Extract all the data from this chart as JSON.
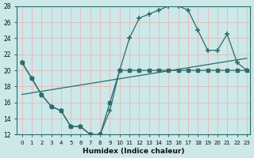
{
  "xlabel": "Humidex (Indice chaleur)",
  "bg_color": "#cce8e8",
  "line_color": "#2d6b6b",
  "grid_color": "#e8b8b8",
  "xlim": [
    -0.5,
    23.3
  ],
  "ylim": [
    12,
    28
  ],
  "xticks": [
    0,
    1,
    2,
    3,
    4,
    5,
    6,
    7,
    8,
    9,
    10,
    11,
    12,
    13,
    14,
    15,
    16,
    17,
    18,
    19,
    20,
    21,
    22,
    23
  ],
  "yticks": [
    12,
    14,
    16,
    18,
    20,
    22,
    24,
    26,
    28
  ],
  "line1_x": [
    0,
    1,
    2,
    3,
    4,
    5,
    6,
    7,
    8,
    9,
    10,
    11,
    12,
    13,
    14,
    15,
    16,
    17,
    18,
    19,
    20,
    21,
    22,
    23
  ],
  "line1_y": [
    21,
    19,
    17,
    15.5,
    15,
    13,
    13,
    12,
    12,
    16,
    20,
    20,
    20,
    20,
    20,
    20,
    20,
    20,
    20,
    20,
    20,
    20,
    20,
    20
  ],
  "line2_x": [
    0,
    1,
    2,
    3,
    4,
    5,
    6,
    7,
    8,
    9,
    10,
    11,
    12,
    13,
    14,
    15,
    16,
    17,
    18,
    19,
    20,
    21,
    22,
    23
  ],
  "line2_y": [
    21,
    19,
    17,
    15.5,
    15,
    13,
    13,
    12,
    12,
    15,
    20,
    24,
    26.5,
    27,
    27.5,
    28,
    28,
    27.5,
    25,
    22.5,
    22.5,
    24.5,
    21,
    20
  ],
  "line3_x": [
    0,
    23
  ],
  "line3_y": [
    17,
    21.5
  ]
}
